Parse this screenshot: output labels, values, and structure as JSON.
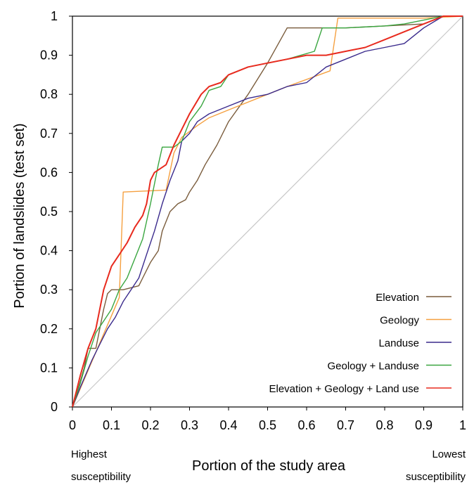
{
  "chart_data": {
    "type": "line",
    "title": "",
    "xlabel": "Portion of the study area",
    "ylabel": "Portion of landslides (test set)",
    "xlim": [
      0,
      1
    ],
    "ylim": [
      0,
      1
    ],
    "x_ticks": [
      "0",
      "0.1",
      "0.2",
      "0.3",
      "0.4",
      "0.5",
      "0.6",
      "0.7",
      "0.8",
      "0.9",
      "1"
    ],
    "y_ticks": [
      "0",
      "0.1",
      "0.2",
      "0.3",
      "0.4",
      "0.5",
      "0.6",
      "0.7",
      "0.8",
      "0.9",
      "1"
    ],
    "grid": false,
    "legend_position": "bottom-right",
    "annotations": {
      "left": [
        "Highest",
        "susceptibility"
      ],
      "right": [
        "Lowest",
        "susceptibility"
      ]
    },
    "reference_line": {
      "x": [
        0,
        1
      ],
      "y": [
        0,
        1
      ],
      "color": "#c8c8c8"
    },
    "series": [
      {
        "name": "Elevation",
        "color": "#7a5c3c",
        "points": [
          [
            0,
            0
          ],
          [
            0.01,
            0.03
          ],
          [
            0.03,
            0.1
          ],
          [
            0.04,
            0.15
          ],
          [
            0.06,
            0.15
          ],
          [
            0.08,
            0.25
          ],
          [
            0.09,
            0.29
          ],
          [
            0.1,
            0.3
          ],
          [
            0.13,
            0.3
          ],
          [
            0.17,
            0.31
          ],
          [
            0.18,
            0.33
          ],
          [
            0.2,
            0.37
          ],
          [
            0.22,
            0.4
          ],
          [
            0.23,
            0.45
          ],
          [
            0.25,
            0.5
          ],
          [
            0.27,
            0.52
          ],
          [
            0.29,
            0.53
          ],
          [
            0.3,
            0.55
          ],
          [
            0.32,
            0.58
          ],
          [
            0.34,
            0.62
          ],
          [
            0.37,
            0.67
          ],
          [
            0.4,
            0.73
          ],
          [
            0.45,
            0.8
          ],
          [
            0.5,
            0.88
          ],
          [
            0.55,
            0.97
          ],
          [
            0.6,
            0.97
          ],
          [
            0.7,
            0.97
          ],
          [
            0.8,
            0.975
          ],
          [
            0.9,
            0.98
          ],
          [
            0.95,
            1
          ],
          [
            1,
            1
          ]
        ]
      },
      {
        "name": "Geology",
        "color": "#f5a040",
        "points": [
          [
            0,
            0
          ],
          [
            0.12,
            0.28
          ],
          [
            0.13,
            0.55
          ],
          [
            0.24,
            0.555
          ],
          [
            0.26,
            0.65
          ],
          [
            0.28,
            0.69
          ],
          [
            0.32,
            0.72
          ],
          [
            0.35,
            0.74
          ],
          [
            0.4,
            0.76
          ],
          [
            0.5,
            0.8
          ],
          [
            0.55,
            0.82
          ],
          [
            0.66,
            0.86
          ],
          [
            0.68,
            0.995
          ],
          [
            0.72,
            0.995
          ],
          [
            0.8,
            0.995
          ],
          [
            0.9,
            0.995
          ],
          [
            1,
            1
          ]
        ]
      },
      {
        "name": "Landuse",
        "color": "#3a2a8c",
        "points": [
          [
            0,
            0
          ],
          [
            0.02,
            0.05
          ],
          [
            0.05,
            0.12
          ],
          [
            0.07,
            0.16
          ],
          [
            0.09,
            0.2
          ],
          [
            0.11,
            0.23
          ],
          [
            0.13,
            0.27
          ],
          [
            0.15,
            0.3
          ],
          [
            0.17,
            0.33
          ],
          [
            0.19,
            0.39
          ],
          [
            0.21,
            0.45
          ],
          [
            0.23,
            0.52
          ],
          [
            0.25,
            0.58
          ],
          [
            0.27,
            0.63
          ],
          [
            0.28,
            0.68
          ],
          [
            0.3,
            0.7
          ],
          [
            0.32,
            0.73
          ],
          [
            0.35,
            0.75
          ],
          [
            0.4,
            0.77
          ],
          [
            0.45,
            0.79
          ],
          [
            0.5,
            0.8
          ],
          [
            0.55,
            0.82
          ],
          [
            0.6,
            0.83
          ],
          [
            0.65,
            0.87
          ],
          [
            0.7,
            0.89
          ],
          [
            0.75,
            0.91
          ],
          [
            0.8,
            0.92
          ],
          [
            0.85,
            0.93
          ],
          [
            0.9,
            0.97
          ],
          [
            0.95,
            1
          ],
          [
            1,
            1
          ]
        ]
      },
      {
        "name": "Geology + Landuse",
        "color": "#3aa640",
        "points": [
          [
            0,
            0
          ],
          [
            0.02,
            0.06
          ],
          [
            0.04,
            0.13
          ],
          [
            0.06,
            0.19
          ],
          [
            0.08,
            0.22
          ],
          [
            0.1,
            0.25
          ],
          [
            0.12,
            0.3
          ],
          [
            0.14,
            0.33
          ],
          [
            0.16,
            0.38
          ],
          [
            0.18,
            0.43
          ],
          [
            0.2,
            0.52
          ],
          [
            0.22,
            0.62
          ],
          [
            0.23,
            0.665
          ],
          [
            0.26,
            0.665
          ],
          [
            0.28,
            0.68
          ],
          [
            0.3,
            0.73
          ],
          [
            0.33,
            0.77
          ],
          [
            0.35,
            0.81
          ],
          [
            0.38,
            0.82
          ],
          [
            0.4,
            0.85
          ],
          [
            0.45,
            0.87
          ],
          [
            0.5,
            0.88
          ],
          [
            0.55,
            0.89
          ],
          [
            0.62,
            0.91
          ],
          [
            0.64,
            0.97
          ],
          [
            0.7,
            0.97
          ],
          [
            0.8,
            0.975
          ],
          [
            0.85,
            0.98
          ],
          [
            0.9,
            0.99
          ],
          [
            0.95,
            1
          ],
          [
            1,
            1
          ]
        ]
      },
      {
        "name": "Elevation + Geology + Land use",
        "color": "#e82a1e",
        "points": [
          [
            0,
            0
          ],
          [
            0.02,
            0.08
          ],
          [
            0.04,
            0.15
          ],
          [
            0.06,
            0.2
          ],
          [
            0.08,
            0.3
          ],
          [
            0.1,
            0.36
          ],
          [
            0.12,
            0.39
          ],
          [
            0.14,
            0.42
          ],
          [
            0.16,
            0.46
          ],
          [
            0.18,
            0.49
          ],
          [
            0.19,
            0.52
          ],
          [
            0.2,
            0.58
          ],
          [
            0.21,
            0.6
          ],
          [
            0.24,
            0.62
          ],
          [
            0.26,
            0.67
          ],
          [
            0.28,
            0.71
          ],
          [
            0.3,
            0.75
          ],
          [
            0.33,
            0.8
          ],
          [
            0.35,
            0.82
          ],
          [
            0.38,
            0.83
          ],
          [
            0.4,
            0.85
          ],
          [
            0.45,
            0.87
          ],
          [
            0.5,
            0.88
          ],
          [
            0.55,
            0.89
          ],
          [
            0.6,
            0.9
          ],
          [
            0.65,
            0.9
          ],
          [
            0.7,
            0.91
          ],
          [
            0.75,
            0.92
          ],
          [
            0.8,
            0.94
          ],
          [
            0.85,
            0.96
          ],
          [
            0.9,
            0.98
          ],
          [
            0.95,
            1
          ],
          [
            1,
            1
          ]
        ]
      }
    ]
  }
}
